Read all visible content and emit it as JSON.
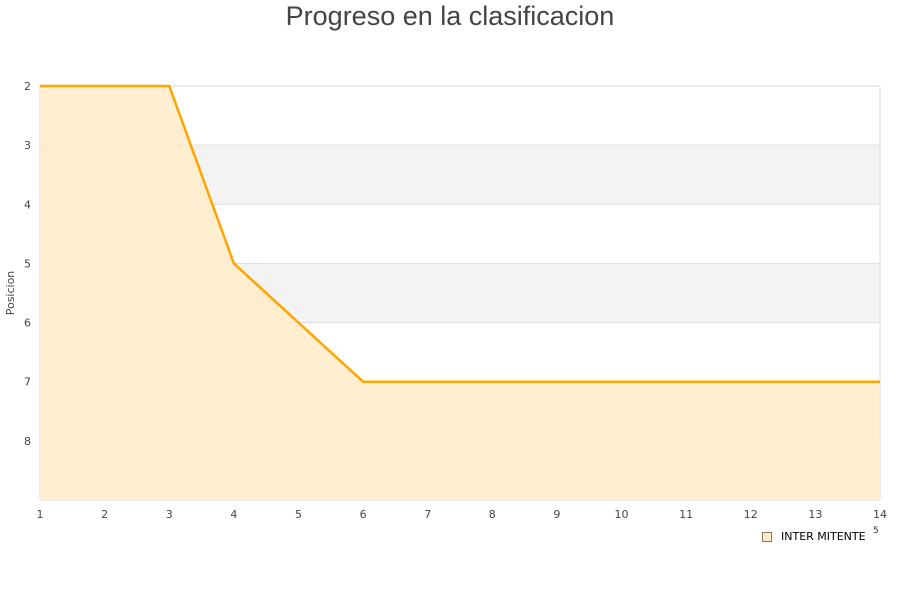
{
  "chart_data": {
    "type": "area",
    "title": "Progreso en la clasificacion",
    "xlabel": "",
    "ylabel": "Posicion",
    "x": [
      1,
      2,
      3,
      4,
      5,
      6,
      7,
      8,
      9,
      10,
      11,
      12,
      13,
      14
    ],
    "series": [
      {
        "name": "INTER MITENTE",
        "values": [
          2,
          2,
          2,
          5,
          6,
          7,
          7,
          7,
          7,
          7,
          7,
          7,
          7,
          7
        ]
      }
    ],
    "xlim": [
      1,
      14
    ],
    "ylim": [
      2,
      9
    ],
    "y_inverted": true,
    "yticks": [
      2,
      3,
      4,
      5,
      6,
      7,
      8
    ],
    "grid": true,
    "legend": "bottom-right",
    "colors": {
      "line": "#ffa500",
      "fill": "#ffebc8",
      "band": "#f3f3f3"
    }
  },
  "extra_text": "5"
}
